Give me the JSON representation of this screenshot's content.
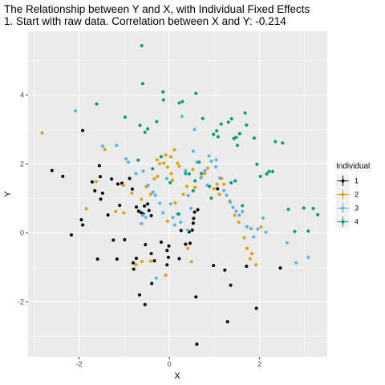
{
  "chart_data": {
    "type": "scatter",
    "title": "The Relationship between Y and X, with Individual Fixed Effects",
    "subtitle": "1. Start with raw data. Correlation between X and Y: -0.214",
    "xlabel": "X",
    "ylabel": "Y",
    "xlim": [
      -3.13,
      3.5
    ],
    "ylim": [
      -3.6,
      5.85
    ],
    "xticks": [
      -2,
      0,
      2
    ],
    "xtick_labels": [
      "-2",
      "0",
      "2"
    ],
    "yticks": [
      -2,
      0,
      2,
      4
    ],
    "ytick_labels": [
      "-2",
      "0",
      "2",
      "4"
    ],
    "grid": true,
    "legend_title": "Individual",
    "legend_placement": "right",
    "series": [
      {
        "name": "1",
        "color": "#000000",
        "points": [
          [
            -1.92,
            2.97
          ],
          [
            -2.6,
            1.81
          ],
          [
            -2.36,
            1.64
          ],
          [
            -2.17,
            -0.06
          ],
          [
            -1.95,
            0.38
          ],
          [
            -1.92,
            0.23
          ],
          [
            -1.71,
            1.48
          ],
          [
            -1.65,
            1.22
          ],
          [
            -1.55,
            1.95
          ],
          [
            -1.53,
            1.63
          ],
          [
            -1.48,
            1.15
          ],
          [
            -1.52,
            0.98
          ],
          [
            -1.59,
            -0.76
          ],
          [
            -1.36,
            0.52
          ],
          [
            -1.28,
            1.56
          ],
          [
            -1.14,
            1.42
          ],
          [
            -1.1,
            0.8
          ],
          [
            -1.05,
            1.44
          ],
          [
            -0.88,
            1.58
          ],
          [
            -0.82,
            1.27
          ],
          [
            -0.73,
            0.75
          ],
          [
            -0.68,
            0.63
          ],
          [
            -0.62,
            0.58
          ],
          [
            -0.58,
            0.55
          ],
          [
            -0.55,
            0.78
          ],
          [
            -0.48,
            0.84
          ],
          [
            -0.45,
            0.65
          ],
          [
            -0.4,
            0.5
          ],
          [
            -1.16,
            -0.76
          ],
          [
            -0.99,
            -0.2
          ],
          [
            -1.24,
            -0.21
          ],
          [
            -0.8,
            -0.87
          ],
          [
            -0.79,
            -1.05
          ],
          [
            -0.73,
            -0.74
          ],
          [
            -0.53,
            -0.34
          ],
          [
            -0.4,
            -0.6
          ],
          [
            -0.33,
            -0.81
          ],
          [
            -0.18,
            -0.27
          ],
          [
            -0.05,
            -0.51
          ],
          [
            -0.02,
            -0.71
          ],
          [
            -0.01,
            -0.38
          ],
          [
            0.22,
            -0.75
          ],
          [
            0.26,
            0.07
          ],
          [
            0.36,
            -0.33
          ],
          [
            0.44,
            0.03
          ],
          [
            0.46,
            -0.3
          ],
          [
            0.51,
            0.08
          ],
          [
            0.54,
            0.42
          ],
          [
            0.53,
            0.28
          ],
          [
            0.63,
            0.67
          ],
          [
            0.56,
            0.6
          ],
          [
            -0.05,
            -0.93
          ],
          [
            -0.66,
            -1.8
          ],
          [
            -0.39,
            -1.47
          ],
          [
            -0.54,
            -2.08
          ],
          [
            0.59,
            -1.86
          ],
          [
            0.98,
            -0.95
          ],
          [
            1.07,
            1.28
          ],
          [
            1.23,
            -1.08
          ],
          [
            1.36,
            -1.52
          ],
          [
            1.29,
            -2.58
          ],
          [
            1.71,
            -0.97
          ],
          [
            1.93,
            -2.19
          ],
          [
            2.46,
            -1.02
          ],
          [
            0.61,
            -3.23
          ]
        ]
      },
      {
        "name": "2",
        "color": "#E69F00",
        "points": [
          [
            -2.82,
            2.9
          ],
          [
            -1.43,
            2.42
          ],
          [
            -1.02,
            1.38
          ],
          [
            -1.19,
            0.62
          ],
          [
            -1.01,
            0.58
          ],
          [
            -1.62,
            1.49
          ],
          [
            -1.84,
            0.7
          ],
          [
            -0.83,
            1.15
          ],
          [
            -0.62,
            0.97
          ],
          [
            -0.51,
            1.34
          ],
          [
            -0.41,
            1.12
          ],
          [
            -0.33,
            1.57
          ],
          [
            -0.26,
            1.64
          ],
          [
            -0.21,
            2.01
          ],
          [
            -0.12,
            2.02
          ],
          [
            -0.08,
            2.26
          ],
          [
            -0.04,
            1.91
          ],
          [
            0.03,
            2.21
          ],
          [
            0.04,
            1.72
          ],
          [
            0.07,
            1.53
          ],
          [
            0.11,
            2.41
          ],
          [
            0.18,
            2.02
          ],
          [
            0.22,
            1.93
          ],
          [
            -0.27,
            2.12
          ],
          [
            0.31,
            1.12
          ],
          [
            0.39,
            1.35
          ],
          [
            0.52,
            1.84
          ],
          [
            0.57,
            1.32
          ],
          [
            0.71,
            1.62
          ],
          [
            0.78,
            1.72
          ],
          [
            0.85,
            1.88
          ],
          [
            0.99,
            1.28
          ],
          [
            1.06,
            1.41
          ],
          [
            1.11,
            1.12
          ],
          [
            1.16,
            1.58
          ],
          [
            1.21,
            1.41
          ],
          [
            1.34,
            0.93
          ],
          [
            1.45,
            0.51
          ],
          [
            1.54,
            0.31
          ],
          [
            1.66,
            -0.14
          ],
          [
            1.72,
            -0.45
          ],
          [
            1.79,
            -0.75
          ],
          [
            1.83,
            -0.6
          ],
          [
            1.92,
            -0.93
          ],
          [
            2.03,
            0.17
          ],
          [
            -0.08,
            -1.23
          ],
          [
            -0.41,
            -0.82
          ],
          [
            -0.61,
            -0.83
          ],
          [
            0.49,
            -0.84
          ],
          [
            0.41,
            -0.45
          ],
          [
            -0.04,
            0.34
          ],
          [
            0.13,
            0.87
          ],
          [
            -0.74,
            -0.93
          ]
        ]
      },
      {
        "name": "3",
        "color": "#56B4E9",
        "points": [
          [
            -2.08,
            3.54
          ],
          [
            -1.48,
            2.52
          ],
          [
            -1.17,
            2.54
          ],
          [
            -0.96,
            2.15
          ],
          [
            -0.91,
            2.05
          ],
          [
            -0.74,
            1.72
          ],
          [
            -0.58,
            1.79
          ],
          [
            -0.47,
            1.38
          ],
          [
            -0.36,
            1.18
          ],
          [
            -0.31,
            1.09
          ],
          [
            -0.21,
            0.86
          ],
          [
            -0.14,
            0.58
          ],
          [
            -0.52,
            0.45
          ],
          [
            -0.62,
            0.27
          ],
          [
            -0.59,
            0.51
          ],
          [
            -0.06,
            1.58
          ],
          [
            0.03,
            0.84
          ],
          [
            0.08,
            0.45
          ],
          [
            0.12,
            0.23
          ],
          [
            0.18,
            0.55
          ],
          [
            0.25,
            0.31
          ],
          [
            0.36,
            1.81
          ],
          [
            0.42,
            1.08
          ],
          [
            0.48,
            0.71
          ],
          [
            0.53,
            2.37
          ],
          [
            0.56,
            3.0
          ],
          [
            0.61,
            2.05
          ],
          [
            0.7,
            1.6
          ],
          [
            0.79,
            1.8
          ],
          [
            0.88,
            2.23
          ],
          [
            0.93,
            2.08
          ],
          [
            1.03,
            1.92
          ],
          [
            1.12,
            1.59
          ],
          [
            1.21,
            1.23
          ],
          [
            1.27,
            1.09
          ],
          [
            1.35,
            0.89
          ],
          [
            1.41,
            0.74
          ],
          [
            1.48,
            0.63
          ],
          [
            1.55,
            0.51
          ],
          [
            1.62,
            0.62
          ],
          [
            1.72,
            0.18
          ],
          [
            1.81,
            0.12
          ],
          [
            1.87,
            -0.12
          ],
          [
            1.96,
            0.11
          ],
          [
            2.08,
            0.43
          ],
          [
            2.14,
            0.02
          ],
          [
            2.61,
            -0.29
          ],
          [
            2.81,
            -0.87
          ],
          [
            3.08,
            -0.71
          ],
          [
            -0.29,
            -1.31
          ],
          [
            0.28,
            3.38
          ],
          [
            0.84,
            1.38
          ],
          [
            0.41,
            0.08
          ],
          [
            1.04,
            2.12
          ]
        ]
      },
      {
        "name": "4",
        "color": "#009E73",
        "points": [
          [
            -0.61,
            5.43
          ],
          [
            -1.61,
            3.74
          ],
          [
            -0.98,
            3.36
          ],
          [
            -0.59,
            4.33
          ],
          [
            -0.48,
            3.02
          ],
          [
            -0.65,
            3.12
          ],
          [
            -0.54,
            2.92
          ],
          [
            -0.28,
            3.23
          ],
          [
            -0.13,
            3.86
          ],
          [
            -0.14,
            4.09
          ],
          [
            0.22,
            3.77
          ],
          [
            0.29,
            3.81
          ],
          [
            0.59,
            4.05
          ],
          [
            0.74,
            3.32
          ],
          [
            0.98,
            2.86
          ],
          [
            1.08,
            2.79
          ],
          [
            1.15,
            3.16
          ],
          [
            1.31,
            3.21
          ],
          [
            1.38,
            3.31
          ],
          [
            1.43,
            2.74
          ],
          [
            1.48,
            2.77
          ],
          [
            1.51,
            2.54
          ],
          [
            1.56,
            2.88
          ],
          [
            1.68,
            3.48
          ],
          [
            1.71,
            3.13
          ],
          [
            1.88,
            2.75
          ],
          [
            1.94,
            1.99
          ],
          [
            2.02,
            1.64
          ],
          [
            2.16,
            1.71
          ],
          [
            2.21,
            1.78
          ],
          [
            2.29,
            1.78
          ],
          [
            2.35,
            2.65
          ],
          [
            2.51,
            2.61
          ],
          [
            2.64,
            0.68
          ],
          [
            2.78,
            0.04
          ],
          [
            2.98,
            0.72
          ],
          [
            3.08,
            0.05
          ],
          [
            3.19,
            0.71
          ],
          [
            3.29,
            0.53
          ],
          [
            1.62,
            0.79
          ],
          [
            1.46,
            1.51
          ],
          [
            0.21,
            0.55
          ],
          [
            0.44,
            1.71
          ],
          [
            0.02,
            1.46
          ],
          [
            -0.37,
            1.86
          ],
          [
            -0.69,
            2.11
          ],
          [
            0.57,
            1.51
          ],
          [
            0.36,
            1.72
          ],
          [
            0.71,
            1.72
          ],
          [
            0.89,
            1.35
          ],
          [
            0.93,
            1.01
          ],
          [
            0.66,
            2.05
          ],
          [
            1.37,
            1.45
          ],
          [
            0.53,
            1.22
          ],
          [
            -0.18,
            2.21
          ],
          [
            1.05,
            2.96
          ]
        ]
      }
    ]
  }
}
